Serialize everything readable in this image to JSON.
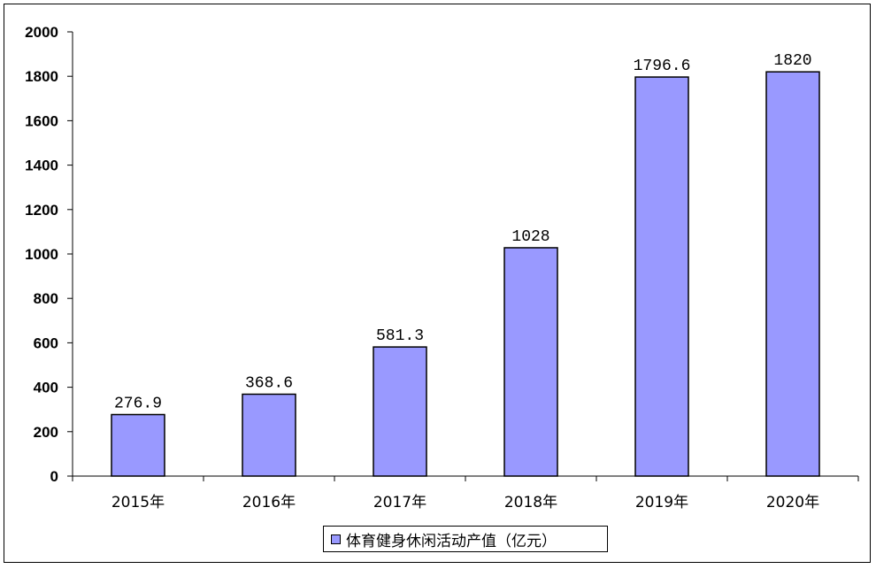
{
  "chart_data": {
    "type": "bar",
    "categories": [
      "2015年",
      "2016年",
      "2017年",
      "2018年",
      "2019年",
      "2020年"
    ],
    "series": [
      {
        "name": "体育健身休闲活动产值（亿元）",
        "values": [
          276.9,
          368.6,
          581.3,
          1028,
          1796.6,
          1820
        ]
      }
    ],
    "data_labels": [
      "276.9",
      "368.6",
      "581.3",
      "1028",
      "1796.6",
      "1820"
    ],
    "ylim": [
      0,
      2000
    ],
    "yticks": [
      0,
      200,
      400,
      600,
      800,
      1000,
      1200,
      1400,
      1600,
      1800,
      2000
    ],
    "grid": false,
    "legend_position": "bottom",
    "bar_color": "#9999ff"
  }
}
